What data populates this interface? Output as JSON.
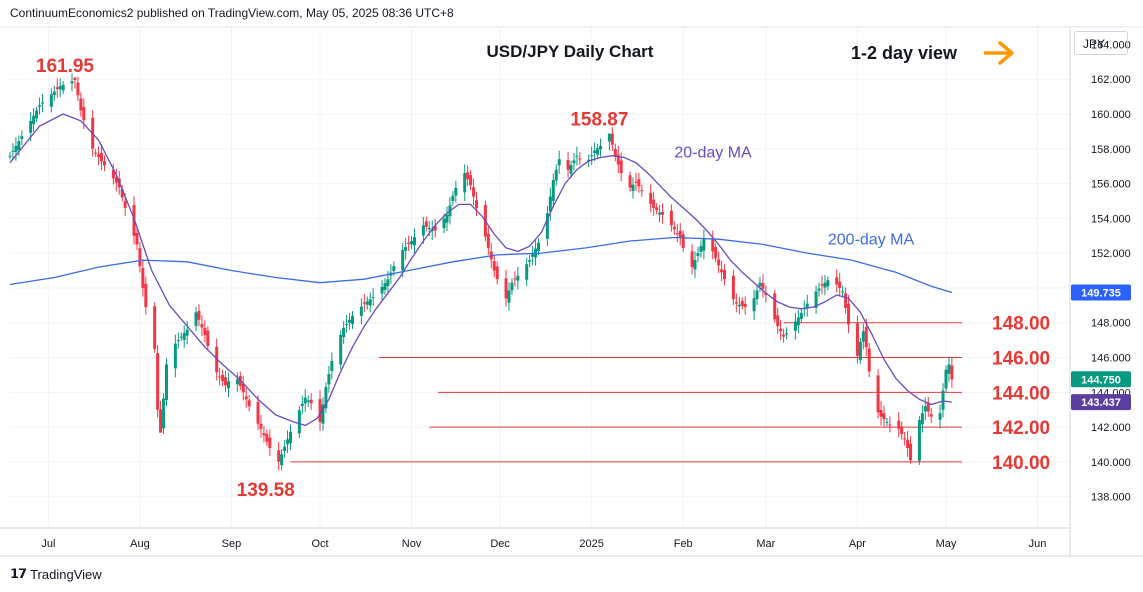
{
  "header": {
    "attribution": "ContinuumEconomics2 published on TradingView.com, May 05, 2025 08:36 UTC+8"
  },
  "footer": {
    "brand": "TradingView",
    "logo": "tv-logo-icon"
  },
  "chart_data": {
    "type": "candlestick",
    "title": "USD/JPY Daily Chart",
    "view_label": "1-2 day view",
    "view_arrow": "right-arrow-icon",
    "unit_label": "JPY",
    "ylim": [
      136.2,
      165.0
    ],
    "y_ticks": [
      138.0,
      140.0,
      142.0,
      144.0,
      146.0,
      148.0,
      150.0,
      152.0,
      154.0,
      156.0,
      158.0,
      160.0,
      162.0
    ],
    "y_tick_labels": [
      "138.000",
      "140.000",
      "142.000",
      "144.000",
      "146.000",
      "148.000",
      "150.000",
      "152.000",
      "154.000",
      "156.000",
      "158.000",
      "160.000",
      "162.000"
    ],
    "partial_top_label": "164.000",
    "x_ticks": [
      {
        "label": "Jul",
        "day": 13
      },
      {
        "label": "Aug",
        "day": 44
      },
      {
        "label": "Sep",
        "day": 75
      },
      {
        "label": "Oct",
        "day": 105
      },
      {
        "label": "Nov",
        "day": 136
      },
      {
        "label": "Dec",
        "day": 166
      },
      {
        "label": "2025",
        "day": 197
      },
      {
        "label": "Feb",
        "day": 228
      },
      {
        "label": "Mar",
        "day": 256
      },
      {
        "label": "Apr",
        "day": 287
      },
      {
        "label": "May",
        "day": 317
      },
      {
        "label": "Jun",
        "day": 348
      }
    ],
    "xlim_days": [
      0,
      359
    ],
    "anchor_points": [
      [
        0,
        157.6
      ],
      [
        5,
        159.0
      ],
      [
        10,
        160.5
      ],
      [
        17,
        161.6
      ],
      [
        22,
        161.95
      ],
      [
        24,
        160.2
      ],
      [
        28,
        158.0
      ],
      [
        33,
        156.8
      ],
      [
        37,
        155.8
      ],
      [
        40,
        154.0
      ],
      [
        43,
        152.5
      ],
      [
        45,
        150.0
      ],
      [
        47,
        147.8
      ],
      [
        49,
        146.5
      ],
      [
        50,
        143.0
      ],
      [
        51,
        141.68
      ],
      [
        53,
        145.6
      ],
      [
        56,
        146.8
      ],
      [
        60,
        147.6
      ],
      [
        63,
        148.6
      ],
      [
        66,
        147.3
      ],
      [
        69,
        145.4
      ],
      [
        73,
        144.4
      ],
      [
        76,
        145.1
      ],
      [
        79,
        144.0
      ],
      [
        82,
        142.8
      ],
      [
        85,
        141.9
      ],
      [
        88,
        140.8
      ],
      [
        90,
        139.58
      ],
      [
        94,
        141.3
      ],
      [
        97,
        142.6
      ],
      [
        100,
        143.7
      ],
      [
        103,
        143.2
      ],
      [
        105,
        142.3
      ],
      [
        107,
        144.3
      ],
      [
        109,
        145.8
      ],
      [
        111,
        146.9
      ],
      [
        113,
        147.7
      ],
      [
        116,
        148.4
      ],
      [
        120,
        149.1
      ],
      [
        124,
        149.6
      ],
      [
        128,
        150.5
      ],
      [
        132,
        152.0
      ],
      [
        136,
        152.7
      ],
      [
        140,
        153.6
      ],
      [
        144,
        153.3
      ],
      [
        148,
        154.2
      ],
      [
        150,
        155.3
      ],
      [
        152,
        156.2
      ],
      [
        154,
        156.6
      ],
      [
        156,
        155.9
      ],
      [
        158,
        154.6
      ],
      [
        160,
        153.6
      ],
      [
        162,
        152.3
      ],
      [
        164,
        151.0
      ],
      [
        166,
        150.0
      ],
      [
        168,
        149.4
      ],
      [
        170,
        150.3
      ],
      [
        173,
        150.9
      ],
      [
        176,
        151.6
      ],
      [
        179,
        152.6
      ],
      [
        182,
        154.3
      ],
      [
        184,
        156.2
      ],
      [
        186,
        157.4
      ],
      [
        189,
        156.8
      ],
      [
        192,
        157.6
      ],
      [
        195,
        157.1
      ],
      [
        198,
        157.9
      ],
      [
        201,
        158.3
      ],
      [
        203,
        158.87
      ],
      [
        205,
        157.6
      ],
      [
        207,
        156.6
      ],
      [
        209,
        155.6
      ],
      [
        212,
        156.1
      ],
      [
        215,
        155.3
      ],
      [
        218,
        154.6
      ],
      [
        221,
        154.2
      ],
      [
        224,
        153.6
      ],
      [
        227,
        152.9
      ],
      [
        229,
        151.7
      ],
      [
        231,
        151.2
      ],
      [
        234,
        152.4
      ],
      [
        236,
        153.3
      ],
      [
        238,
        152.1
      ],
      [
        240,
        151.3
      ],
      [
        242,
        150.5
      ],
      [
        244,
        149.6
      ],
      [
        246,
        149.1
      ],
      [
        249,
        148.9
      ],
      [
        252,
        149.4
      ],
      [
        254,
        150.3
      ],
      [
        256,
        149.6
      ],
      [
        258,
        148.6
      ],
      [
        260,
        147.8
      ],
      [
        262,
        147.2
      ],
      [
        264,
        147.6
      ],
      [
        267,
        148.3
      ],
      [
        270,
        149.1
      ],
      [
        273,
        149.8
      ],
      [
        276,
        150.3
      ],
      [
        278,
        150.6
      ],
      [
        280,
        150.2
      ],
      [
        282,
        149.8
      ],
      [
        284,
        147.9
      ],
      [
        285,
        146.4
      ],
      [
        286,
        145.3
      ],
      [
        288,
        146.9
      ],
      [
        289,
        147.5
      ],
      [
        290,
        146.6
      ],
      [
        291,
        145.2
      ],
      [
        292,
        144.1
      ],
      [
        293,
        143.1
      ],
      [
        295,
        142.6
      ],
      [
        297,
        142.3
      ],
      [
        299,
        142.0
      ],
      [
        301,
        141.9
      ],
      [
        303,
        141.3
      ],
      [
        304,
        140.8
      ],
      [
        305,
        140.1
      ],
      [
        306,
        141.1
      ],
      [
        308,
        142.4
      ],
      [
        310,
        143.2
      ],
      [
        311,
        142.9
      ],
      [
        313,
        142.3
      ],
      [
        315,
        142.8
      ],
      [
        316,
        144.1
      ],
      [
        317,
        145.3
      ],
      [
        318,
        145.6
      ],
      [
        319,
        144.75
      ]
    ],
    "series": [
      {
        "name": "20-day MA",
        "color": "#6a4bbf",
        "points": [
          [
            0,
            157.2
          ],
          [
            10,
            159.3
          ],
          [
            18,
            160.0
          ],
          [
            24,
            159.6
          ],
          [
            30,
            158.5
          ],
          [
            36,
            156.5
          ],
          [
            42,
            154.0
          ],
          [
            48,
            151.0
          ],
          [
            54,
            149.0
          ],
          [
            60,
            147.8
          ],
          [
            66,
            146.6
          ],
          [
            72,
            145.6
          ],
          [
            78,
            144.7
          ],
          [
            84,
            143.6
          ],
          [
            90,
            142.7
          ],
          [
            96,
            142.3
          ],
          [
            100,
            142.1
          ],
          [
            104,
            142.5
          ],
          [
            108,
            143.6
          ],
          [
            112,
            145.2
          ],
          [
            116,
            146.6
          ],
          [
            120,
            147.8
          ],
          [
            124,
            148.8
          ],
          [
            128,
            149.7
          ],
          [
            132,
            150.6
          ],
          [
            136,
            151.7
          ],
          [
            140,
            152.7
          ],
          [
            144,
            153.6
          ],
          [
            148,
            154.3
          ],
          [
            152,
            154.8
          ],
          [
            156,
            154.8
          ],
          [
            160,
            154.1
          ],
          [
            164,
            153.1
          ],
          [
            168,
            152.3
          ],
          [
            172,
            152.1
          ],
          [
            176,
            152.4
          ],
          [
            180,
            153.2
          ],
          [
            184,
            154.7
          ],
          [
            188,
            156.0
          ],
          [
            192,
            156.8
          ],
          [
            196,
            157.3
          ],
          [
            200,
            157.5
          ],
          [
            204,
            157.6
          ],
          [
            208,
            157.5
          ],
          [
            212,
            157.2
          ],
          [
            216,
            156.6
          ],
          [
            220,
            155.9
          ],
          [
            224,
            155.2
          ],
          [
            228,
            154.6
          ],
          [
            232,
            154.0
          ],
          [
            236,
            153.3
          ],
          [
            240,
            152.5
          ],
          [
            244,
            151.6
          ],
          [
            248,
            150.9
          ],
          [
            252,
            150.3
          ],
          [
            256,
            149.7
          ],
          [
            260,
            149.2
          ],
          [
            264,
            148.9
          ],
          [
            268,
            148.8
          ],
          [
            272,
            148.9
          ],
          [
            276,
            149.2
          ],
          [
            280,
            149.6
          ],
          [
            284,
            149.4
          ],
          [
            288,
            148.6
          ],
          [
            292,
            147.3
          ],
          [
            296,
            145.9
          ],
          [
            300,
            144.8
          ],
          [
            304,
            144.1
          ],
          [
            308,
            143.6
          ],
          [
            312,
            143.3
          ],
          [
            316,
            143.5
          ],
          [
            319,
            143.437
          ]
        ]
      },
      {
        "name": "200-day MA",
        "color": "#3b6de0",
        "points": [
          [
            0,
            150.2
          ],
          [
            15,
            150.6
          ],
          [
            30,
            151.2
          ],
          [
            45,
            151.6
          ],
          [
            60,
            151.5
          ],
          [
            75,
            151.0
          ],
          [
            90,
            150.6
          ],
          [
            105,
            150.3
          ],
          [
            120,
            150.5
          ],
          [
            135,
            151.0
          ],
          [
            150,
            151.5
          ],
          [
            165,
            151.9
          ],
          [
            180,
            152.0
          ],
          [
            195,
            152.3
          ],
          [
            210,
            152.7
          ],
          [
            225,
            152.9
          ],
          [
            240,
            152.8
          ],
          [
            255,
            152.5
          ],
          [
            270,
            152.0
          ],
          [
            285,
            151.6
          ],
          [
            300,
            150.9
          ],
          [
            312,
            150.1
          ],
          [
            319,
            149.735
          ]
        ]
      }
    ],
    "level_annotations": [
      {
        "label": "148.00",
        "value": 148.0
      },
      {
        "label": "146.00",
        "value": 146.0
      },
      {
        "label": "144.00",
        "value": 144.0
      },
      {
        "label": "142.00",
        "value": 142.0
      },
      {
        "label": "140.00",
        "value": 140.0
      }
    ],
    "point_annotations": [
      {
        "label": "161.95",
        "day": 22,
        "value": 161.95
      },
      {
        "label": "158.87",
        "day": 203,
        "value": 158.87
      },
      {
        "label": "139.58",
        "day": 90,
        "value": 139.58
      }
    ],
    "ma_labels": [
      {
        "text": "20-day MA",
        "day": 225,
        "value": 157.5,
        "color": "#6a4bbf"
      },
      {
        "text": "200-day MA",
        "day": 277,
        "value": 152.5,
        "color": "#3b6de0"
      }
    ],
    "price_tags": [
      {
        "text": "149.735",
        "value": 149.735,
        "color": "#2962ff"
      },
      {
        "text": "144.750",
        "value": 144.75,
        "color": "#089981"
      },
      {
        "text": "143.437",
        "value": 143.437,
        "color": "#5b3fa0"
      }
    ],
    "colors": {
      "up": "#089981",
      "down": "#f23645",
      "level": "#e53935",
      "annotation": "#e53935",
      "arrow": "#ff9800"
    }
  }
}
